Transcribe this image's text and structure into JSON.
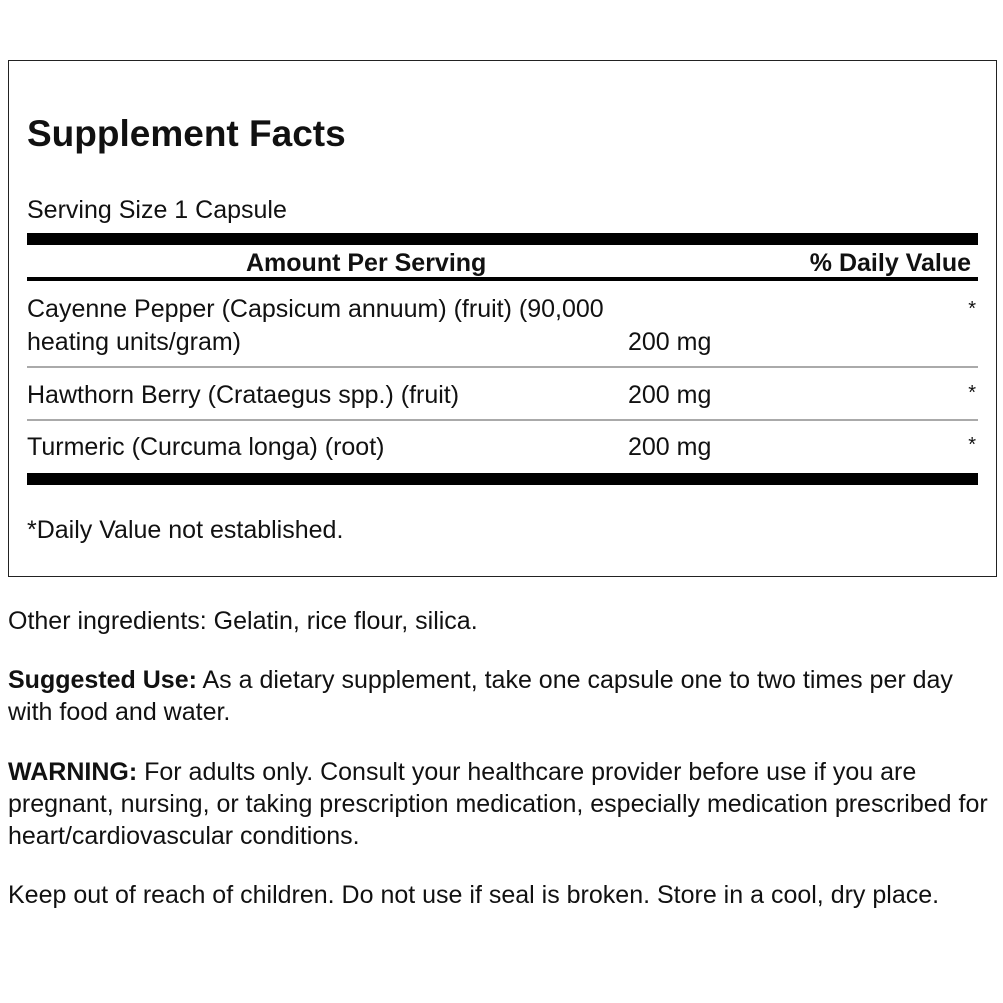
{
  "facts": {
    "title": "Supplement Facts",
    "serving_size": "Serving Size 1 Capsule",
    "header_amount": "Amount Per Serving",
    "header_dv": "% Daily Value",
    "rows": [
      {
        "name_line1": "Cayenne Pepper (Capsicum annuum) (fruit) (90,000",
        "name_line2": "heating units/gram)",
        "amount": "200 mg",
        "dv": "*"
      },
      {
        "name_line1": "Hawthorn Berry (Crataegus spp.) (fruit)",
        "amount": "200 mg",
        "dv": "*"
      },
      {
        "name_line1": "Turmeric (Curcuma longa) (root)",
        "amount": "200 mg",
        "dv": "*"
      }
    ],
    "footnote": "*Daily Value not established."
  },
  "other_ingredients": "Other ingredients: Gelatin, rice flour, silica.",
  "suggested_use": {
    "label": "Suggested Use:",
    "text": " As a dietary supplement, take one capsule one to two times per day with food and water."
  },
  "warning": {
    "label": "WARNING:",
    "text": " For adults only. Consult your healthcare provider before use if you are pregnant, nursing, or taking prescription medication, especially medication prescribed for heart/cardiovascular conditions."
  },
  "storage": "Keep out of reach of children. Do not use if seal is broken. Store in a cool, dry place."
}
